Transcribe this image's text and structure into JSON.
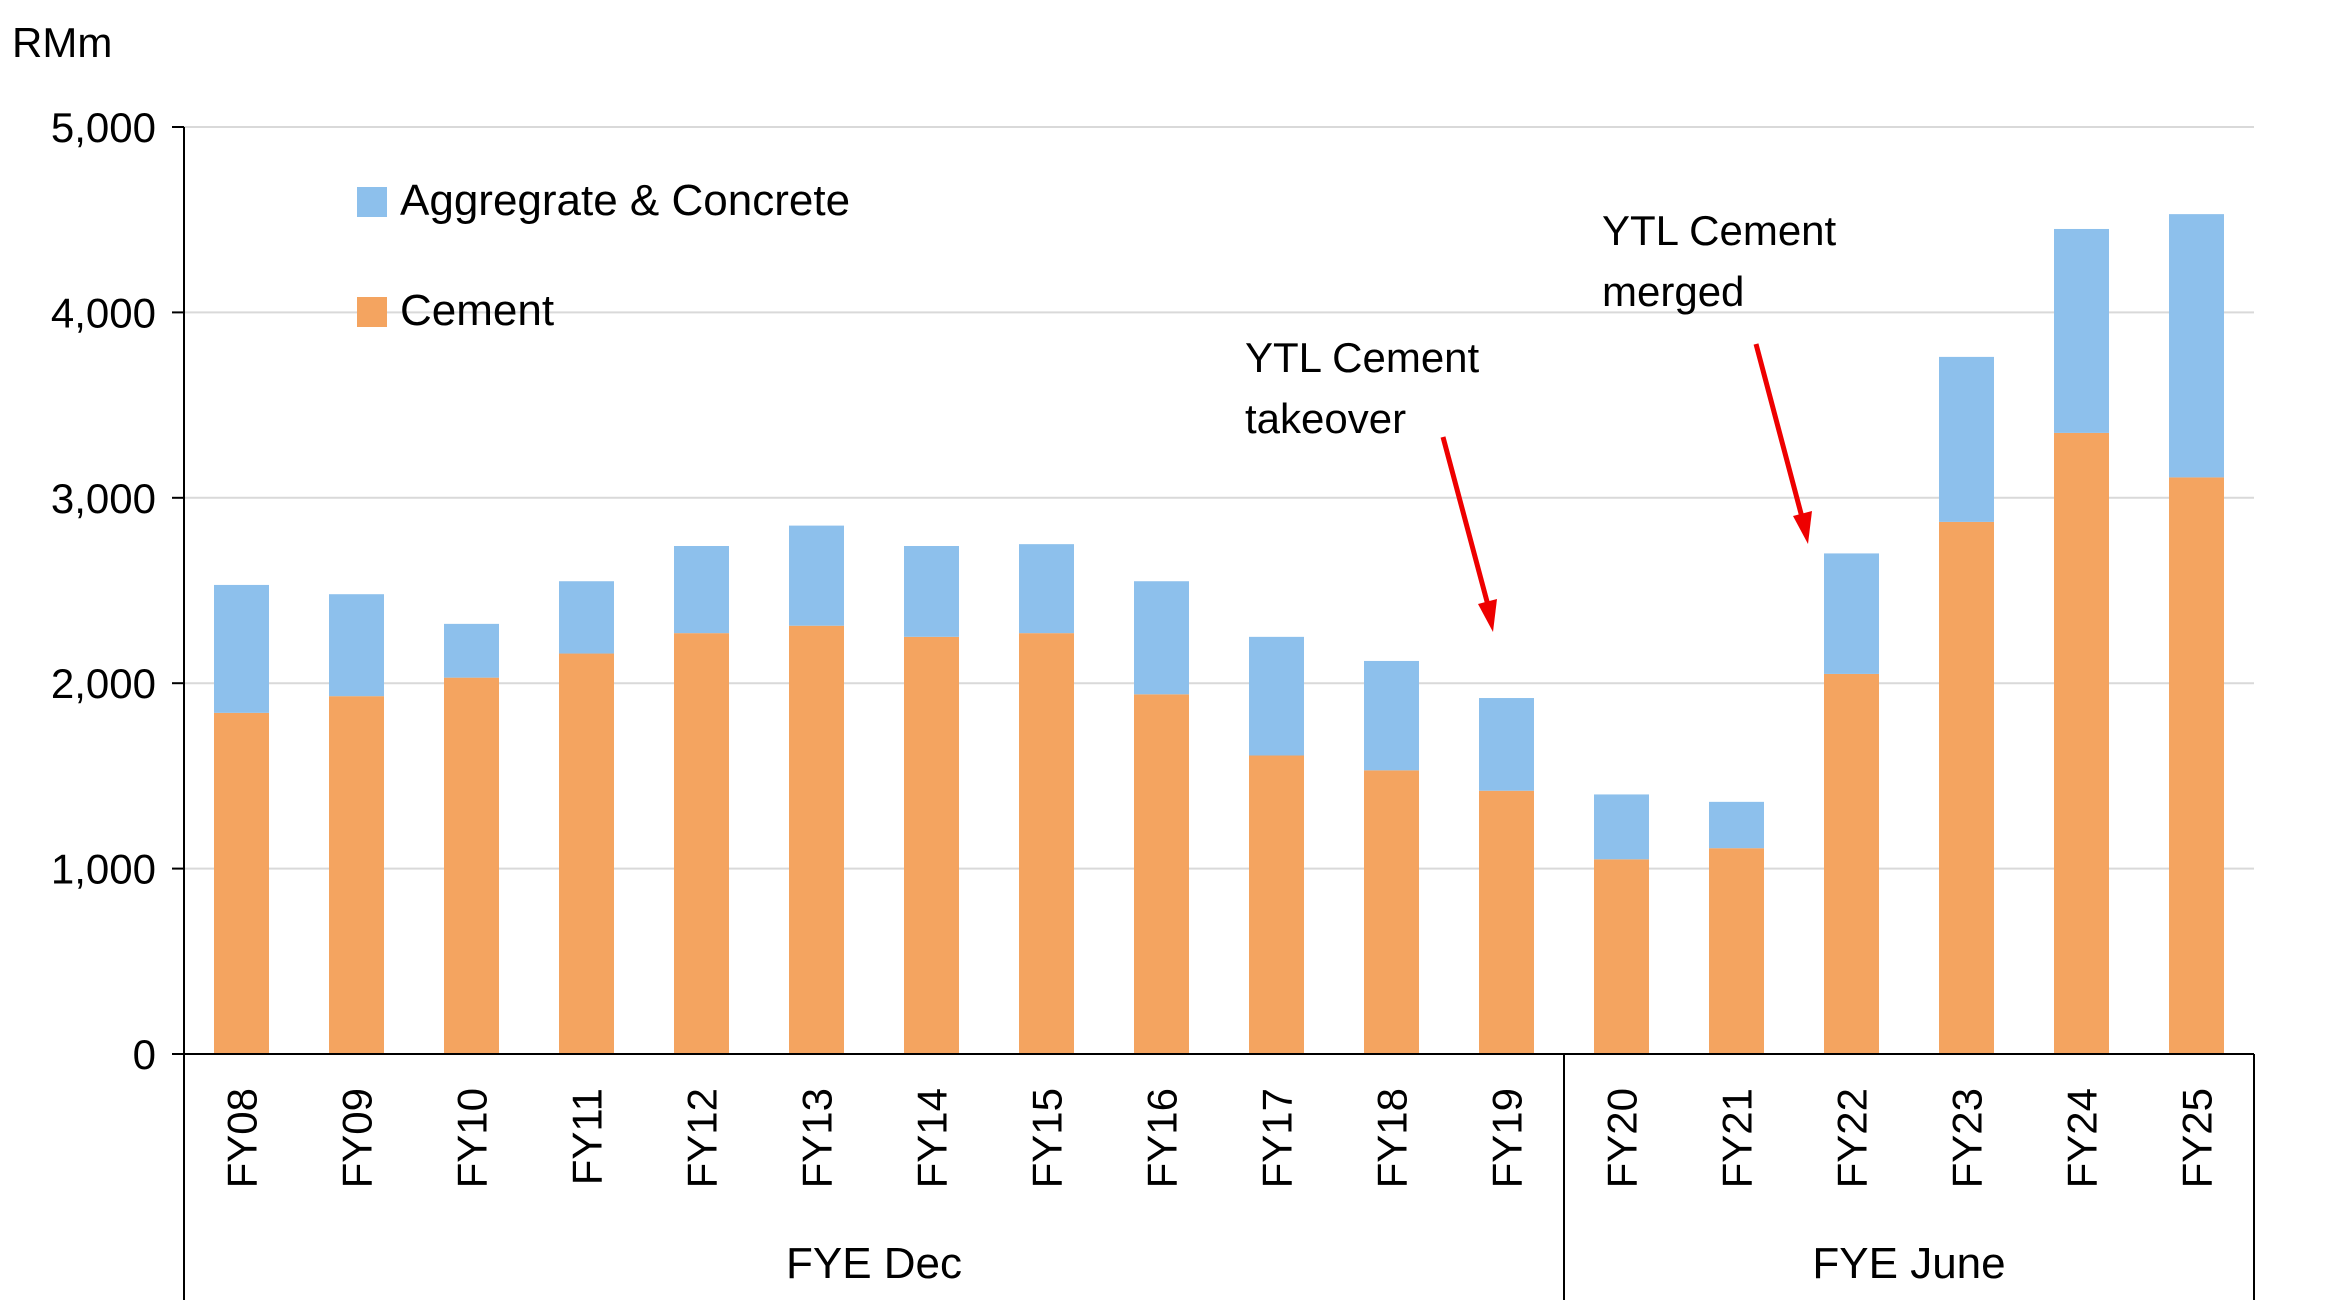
{
  "chart_data": {
    "type": "bar",
    "stacked": true,
    "unit_label": "RMm",
    "ylim": [
      0,
      5000
    ],
    "yticks": [
      0,
      1000,
      2000,
      3000,
      4000,
      5000
    ],
    "ytick_labels": [
      "0",
      "1,000",
      "2,000",
      "3,000",
      "4,000",
      "5,000"
    ],
    "grid": true,
    "legend_position": "top-left",
    "categories": [
      "FY08",
      "FY09",
      "FY10",
      "FY11",
      "FY12",
      "FY13",
      "FY14",
      "FY15",
      "FY16",
      "FY17",
      "FY18",
      "FY19",
      "FY20",
      "FY21",
      "FY22",
      "FY23",
      "FY24",
      "FY25"
    ],
    "series": [
      {
        "name": "Cement",
        "color": "#F4A460",
        "values": [
          1840,
          1930,
          2030,
          2160,
          2270,
          2310,
          2250,
          2270,
          1940,
          1610,
          1530,
          1420,
          1050,
          1110,
          2050,
          2870,
          3350,
          3110
        ]
      },
      {
        "name": "Aggregrate & Concrete",
        "color": "#8DC0EC",
        "values": [
          690,
          550,
          290,
          390,
          470,
          540,
          490,
          480,
          610,
          640,
          590,
          500,
          350,
          250,
          650,
          890,
          1100,
          1420
        ]
      }
    ],
    "legend": [
      {
        "label": "Aggregrate & Concrete",
        "color": "#8DC0EC"
      },
      {
        "label": "Cement",
        "color": "#F4A460"
      }
    ],
    "groups": [
      {
        "label": "FYE Dec",
        "from": 0,
        "to": 11
      },
      {
        "label": "FYE June",
        "from": 12,
        "to": 17
      }
    ],
    "annotations": [
      {
        "lines": [
          "YTL Cement",
          "takeover"
        ],
        "category": "FY19"
      },
      {
        "lines": [
          "YTL Cement",
          "merged"
        ],
        "category": "FY22"
      }
    ],
    "arrow_color": "#EE0000"
  }
}
